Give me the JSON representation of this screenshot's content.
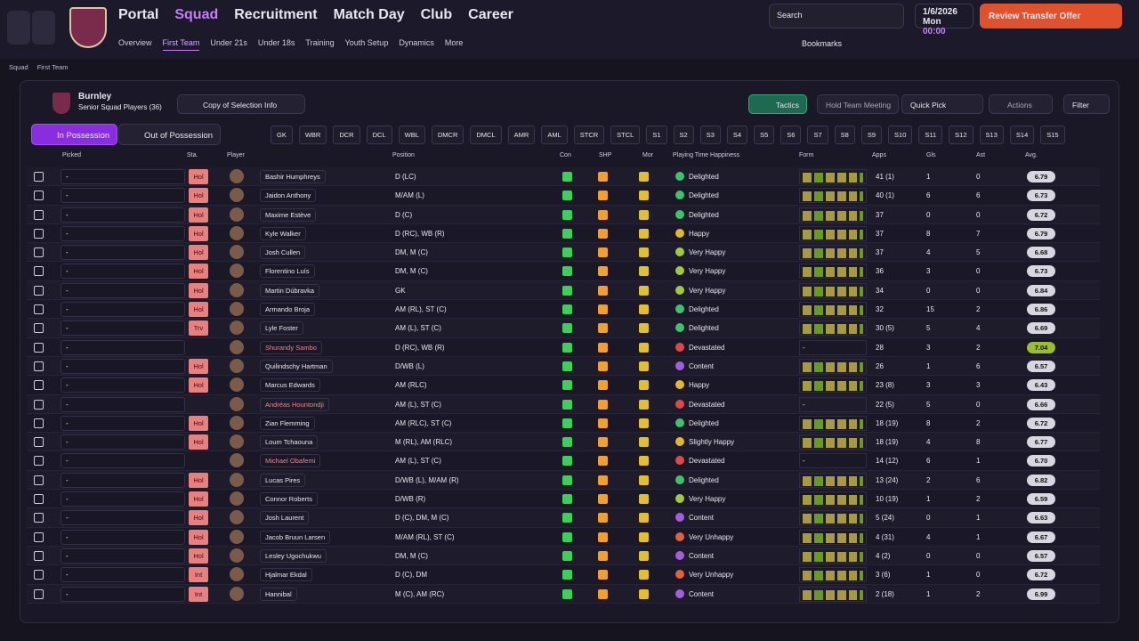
{
  "header": {
    "nav": [
      "Portal",
      "Squad",
      "Recruitment",
      "Match Day",
      "Club",
      "Career"
    ],
    "subnav": [
      "Overview",
      "First Team",
      "Under 21s",
      "Under 18s",
      "Training",
      "Youth Setup",
      "Dynamics",
      "More"
    ],
    "search": "Search",
    "date": "1/6/2026",
    "day": "Mon",
    "time": "00:00",
    "cta": "Review Transfer Offer",
    "bookmarks": "Bookmarks"
  },
  "breadcrumb": [
    "Squad",
    "First Team"
  ],
  "panel": {
    "club": "Burnley",
    "subtitle": "Senior Squad Players (36)",
    "copy": "Copy of Selection Info",
    "tactics": "Tactics",
    "meeting": "Hold Team Meeting",
    "quick_pick": "Quick Pick",
    "actions": "Actions",
    "filter": "Filter",
    "tabs": [
      "In Possession",
      "Out of Possession"
    ],
    "positions": [
      "GK",
      "WBR",
      "DCR",
      "DCL",
      "WBL",
      "DMCR",
      "DMCL",
      "AMR",
      "AML",
      "STCR",
      "STCL",
      "S1",
      "S2",
      "S3",
      "S4",
      "S5",
      "S6",
      "S7",
      "S8",
      "S9",
      "S10",
      "S11",
      "S12",
      "S13",
      "S14",
      "S15"
    ]
  },
  "table": {
    "columns": [
      "Picked",
      "Sta.",
      "Player",
      "Position",
      "Con",
      "SHP",
      "Mor",
      "Playing Time Happiness",
      "Form",
      "Apps",
      "Gls",
      "Ast",
      "Avg."
    ],
    "rows": [
      {
        "picked": "-",
        "sta": "Hol",
        "name": "Bashir Humphreys",
        "position": "D (LC)",
        "happiness": "Delighted",
        "mc": "#3cc46a",
        "apps": "41 (1)",
        "gls": 1,
        "ast": 0,
        "avg": "6.79"
      },
      {
        "picked": "-",
        "sta": "Hol",
        "name": "Jaidon Anthony",
        "position": "M/AM (L)",
        "happiness": "Delighted",
        "mc": "#3cc46a",
        "apps": "40 (1)",
        "gls": 6,
        "ast": 6,
        "avg": "6.73"
      },
      {
        "picked": "-",
        "sta": "Hol",
        "name": "Maxime Estève",
        "position": "D (C)",
        "happiness": "Delighted",
        "mc": "#3cc46a",
        "apps": "37",
        "gls": 0,
        "ast": 0,
        "avg": "6.72"
      },
      {
        "picked": "-",
        "sta": "Hol",
        "name": "Kyle Walker",
        "position": "D (RC), WB (R)",
        "happiness": "Happy",
        "mc": "#e0b830",
        "apps": "37",
        "gls": 8,
        "ast": 7,
        "avg": "6.79"
      },
      {
        "picked": "-",
        "sta": "Hol",
        "name": "Josh Cullen",
        "position": "DM, M (C)",
        "happiness": "Very Happy",
        "mc": "#9ccc3c",
        "apps": "37",
        "gls": 4,
        "ast": 5,
        "avg": "6.68"
      },
      {
        "picked": "-",
        "sta": "Hol",
        "name": "Florentino Luís",
        "position": "DM, M (C)",
        "happiness": "Very Happy",
        "mc": "#9ccc3c",
        "apps": "36",
        "gls": 3,
        "ast": 0,
        "avg": "6.73"
      },
      {
        "picked": "-",
        "sta": "Hol",
        "name": "Martin Dúbravka",
        "position": "GK",
        "happiness": "Very Happy",
        "mc": "#9ccc3c",
        "apps": "34",
        "gls": 0,
        "ast": 0,
        "avg": "6.84"
      },
      {
        "picked": "-",
        "sta": "Hol",
        "name": "Armando Broja",
        "position": "AM (RL), ST (C)",
        "happiness": "Delighted",
        "mc": "#3cc46a",
        "apps": "32",
        "gls": 15,
        "ast": 2,
        "avg": "6.86"
      },
      {
        "picked": "-",
        "sta": "Trv",
        "name": "Lyle Foster",
        "position": "AM (L), ST (C)",
        "happiness": "Delighted",
        "mc": "#3cc46a",
        "apps": "30 (5)",
        "gls": 5,
        "ast": 4,
        "avg": "6.69"
      },
      {
        "picked": "-",
        "sta": null,
        "name": "Shurandy Sambo",
        "position": "D (RC), WB (R)",
        "happiness": "Devastated",
        "mc": "#e04848",
        "form": "-",
        "apps": "28",
        "gls": 3,
        "ast": 2,
        "avg": "7.04"
      },
      {
        "picked": "-",
        "sta": "Hol",
        "name": "Quilindschy Hartman",
        "position": "D/WB (L)",
        "happiness": "Content",
        "mc": "#a45ce0",
        "apps": "26",
        "gls": 1,
        "ast": 6,
        "avg": "6.57"
      },
      {
        "picked": "-",
        "sta": "Hol",
        "name": "Marcus Edwards",
        "position": "AM (RLC)",
        "happiness": "Happy",
        "mc": "#e0b830",
        "apps": "23 (8)",
        "gls": 3,
        "ast": 3,
        "avg": "6.43"
      },
      {
        "picked": "-",
        "sta": null,
        "name": "Andréas Hountondji",
        "position": "AM (L), ST (C)",
        "happiness": "Devastated",
        "mc": "#e04848",
        "form": "-",
        "apps": "22 (5)",
        "gls": 5,
        "ast": 0,
        "avg": "6.66"
      },
      {
        "picked": "-",
        "sta": "Hol",
        "name": "Zian Flemming",
        "position": "AM (RLC), ST (C)",
        "happiness": "Delighted",
        "mc": "#3cc46a",
        "apps": "18 (19)",
        "gls": 8,
        "ast": 2,
        "avg": "6.72"
      },
      {
        "picked": "-",
        "sta": "Hol",
        "name": "Loum Tchaouna",
        "position": "M (RL), AM (RLC)",
        "happiness": "Slightly Happy",
        "mc": "#e0b830",
        "apps": "18 (19)",
        "gls": 4,
        "ast": 8,
        "avg": "6.77"
      },
      {
        "picked": "-",
        "sta": null,
        "name": "Michael Obafemi",
        "position": "AM (L), ST (C)",
        "happiness": "Devastated",
        "mc": "#e04848",
        "form": "-",
        "apps": "14 (12)",
        "gls": 6,
        "ast": 1,
        "avg": "6.70"
      },
      {
        "picked": "-",
        "sta": "Hol",
        "name": "Lucas Pires",
        "position": "D/WB (L), M/AM (R)",
        "happiness": "Delighted",
        "mc": "#3cc46a",
        "apps": "13 (24)",
        "gls": 2,
        "ast": 6,
        "avg": "6.82"
      },
      {
        "picked": "-",
        "sta": "Hol",
        "name": "Connor Roberts",
        "position": "D/WB (R)",
        "happiness": "Very Happy",
        "mc": "#9ccc3c",
        "apps": "10 (19)",
        "gls": 1,
        "ast": 2,
        "avg": "6.59"
      },
      {
        "picked": "-",
        "sta": "Hol",
        "name": "Josh Laurent",
        "position": "D (C), DM, M (C)",
        "happiness": "Content",
        "mc": "#a45ce0",
        "apps": "5 (24)",
        "gls": 0,
        "ast": 1,
        "avg": "6.63"
      },
      {
        "picked": "-",
        "sta": "Hol",
        "name": "Jacob Bruun Larsen",
        "position": "M/AM (RL), ST (C)",
        "happiness": "Very Unhappy",
        "mc": "#e06040",
        "apps": "4 (31)",
        "gls": 4,
        "ast": 1,
        "avg": "6.67"
      },
      {
        "picked": "-",
        "sta": "Hol",
        "name": "Lesley Ugochukwu",
        "position": "DM, M (C)",
        "happiness": "Content",
        "mc": "#a45ce0",
        "apps": "4 (2)",
        "gls": 0,
        "ast": 0,
        "avg": "6.57"
      },
      {
        "picked": "-",
        "sta": "Int",
        "name": "Hjalmar Ekdal",
        "position": "D (C), DM",
        "happiness": "Very Unhappy",
        "mc": "#e06040",
        "apps": "3 (6)",
        "gls": 1,
        "ast": 0,
        "avg": "6.72"
      },
      {
        "picked": "-",
        "sta": "Int",
        "name": "Hannibal",
        "position": "M (C), AM (RC)",
        "happiness": "Content",
        "mc": "#a45ce0",
        "apps": "2 (18)",
        "gls": 1,
        "ast": 2,
        "avg": "6.99"
      }
    ]
  }
}
